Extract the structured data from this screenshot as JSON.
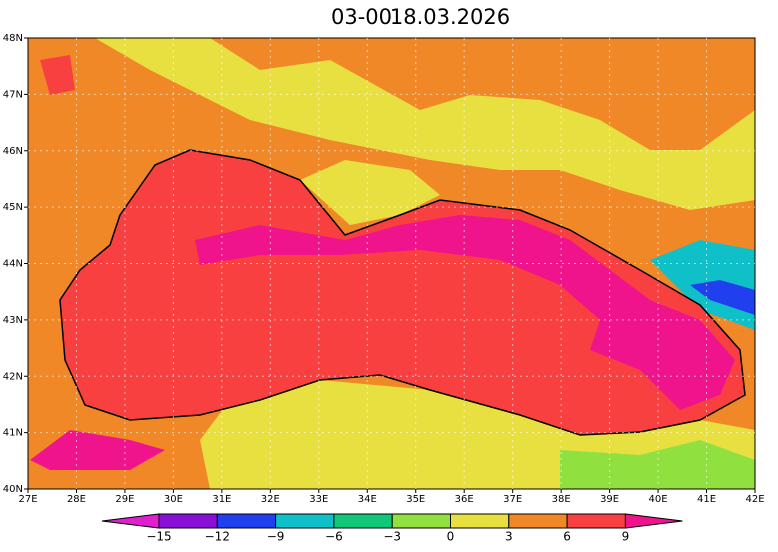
{
  "header": {
    "time": "03-00",
    "date": "18.03.2026"
  },
  "map": {
    "x_ticks": [
      "27E",
      "28E",
      "29E",
      "30E",
      "31E",
      "32E",
      "33E",
      "34E",
      "35E",
      "36E",
      "37E",
      "38E",
      "39E",
      "40E",
      "41E",
      "42E"
    ],
    "y_ticks": [
      "48N",
      "47N",
      "46N",
      "45N",
      "44N",
      "43N",
      "42N",
      "41N",
      "40N"
    ]
  },
  "colorbar": {
    "labels": [
      "−15",
      "−12",
      "−9",
      "−6",
      "−3",
      "0",
      "3",
      "6",
      "9"
    ],
    "colors": [
      "#e020d0",
      "#8a10d8",
      "#2040f0",
      "#10c0c8",
      "#10c878",
      "#90e040",
      "#e8e040",
      "#f08828",
      "#f84040",
      "#f0148c"
    ]
  }
}
